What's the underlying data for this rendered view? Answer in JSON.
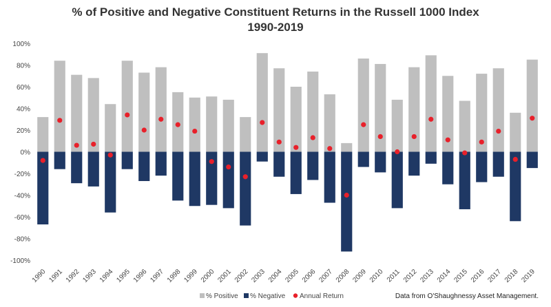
{
  "chart_data": {
    "type": "bar",
    "title": "% of Positive and Negative Constituent Returns in the Russell 1000 Index",
    "subtitle": "1990-2019",
    "categories": [
      "1990",
      "1991",
      "1992",
      "1993",
      "1994",
      "1995",
      "1996",
      "1997",
      "1998",
      "1999",
      "2000",
      "2001",
      "2002",
      "2003",
      "2004",
      "2005",
      "2006",
      "2007",
      "2008",
      "2009",
      "2010",
      "2011",
      "2012",
      "2013",
      "2014",
      "2015",
      "2016",
      "2017",
      "2018",
      "2019"
    ],
    "series": [
      {
        "name": "% Positive",
        "kind": "bar",
        "color": "#bfbfbf",
        "values": [
          32,
          84,
          71,
          68,
          44,
          84,
          73,
          78,
          55,
          50,
          51,
          48,
          32,
          91,
          77,
          60,
          74,
          53,
          8,
          86,
          81,
          48,
          78,
          89,
          70,
          47,
          72,
          77,
          36,
          85
        ]
      },
      {
        "name": "% Negative",
        "kind": "bar",
        "color": "#1f3864",
        "values": [
          -67,
          -16,
          -29,
          -32,
          -56,
          -16,
          -27,
          -22,
          -45,
          -50,
          -49,
          -52,
          -68,
          -9,
          -23,
          -39,
          -26,
          -47,
          -92,
          -14,
          -19,
          -52,
          -22,
          -11,
          -30,
          -53,
          -28,
          -23,
          -64,
          -15
        ]
      },
      {
        "name": "Annual Return",
        "kind": "point",
        "color": "#e8202a",
        "values": [
          -8,
          29,
          6,
          7,
          -3,
          34,
          20,
          30,
          25,
          19,
          -9,
          -14,
          -23,
          27,
          9,
          4,
          13,
          3,
          -40,
          25,
          14,
          0,
          14,
          30,
          11,
          -1,
          9,
          19,
          -7,
          31
        ]
      }
    ],
    "ylim": [
      -100,
      100
    ],
    "yticks": [
      -100,
      -80,
      -60,
      -40,
      -20,
      0,
      20,
      40,
      60,
      80,
      100
    ],
    "ytick_labels": [
      "-100%",
      "-80%",
      "-60%",
      "-40%",
      "-20%",
      "0%",
      "20%",
      "40%",
      "60%",
      "80%",
      "100%"
    ],
    "xlabel": "",
    "ylabel": "",
    "grid": false,
    "legend_position": "bottom"
  },
  "source_note": "Data from O'Shaughnessy Asset Management."
}
